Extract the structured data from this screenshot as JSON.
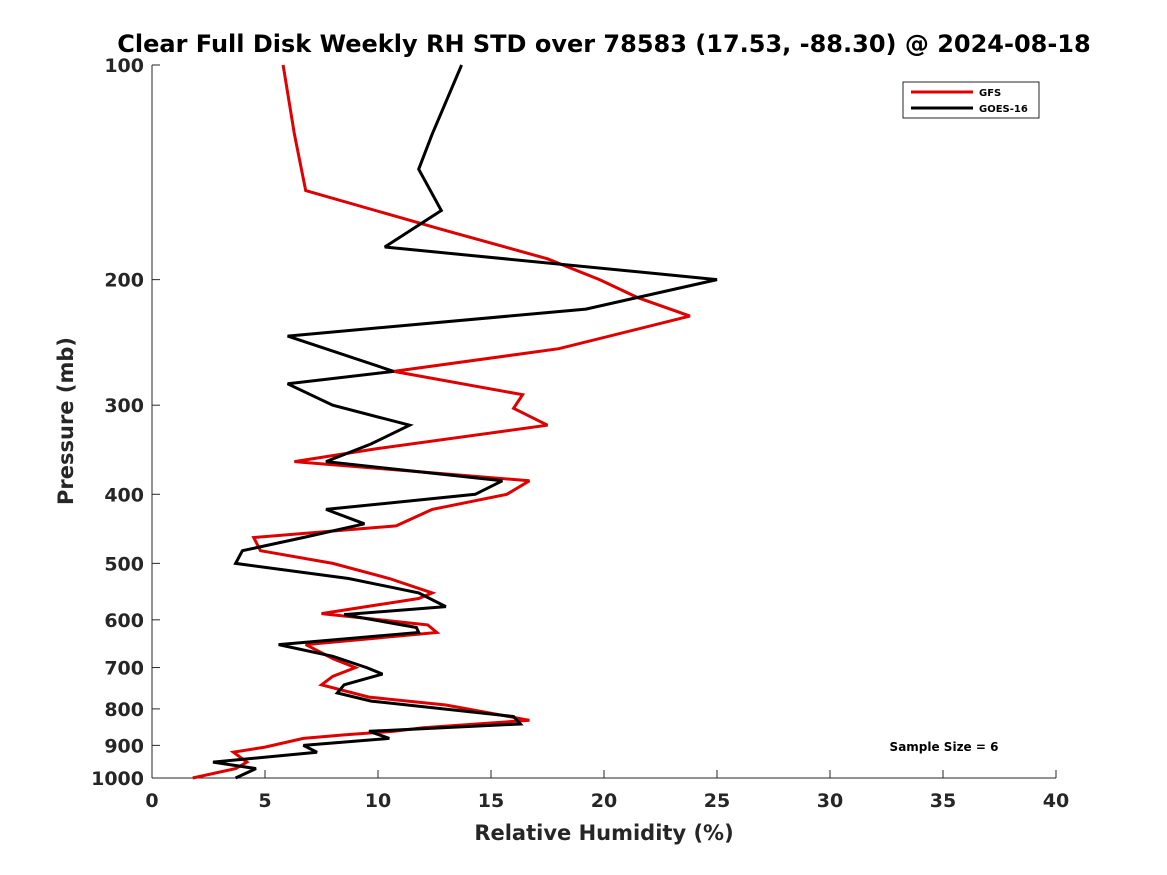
{
  "chart_data": {
    "type": "line",
    "title": "Clear Full Disk Weekly RH STD over 78583 (17.53, -88.30) @ 2024-08-18",
    "xlabel": "Relative Humidity (%)",
    "ylabel": "Pressure (mb)",
    "xlim": [
      0,
      40
    ],
    "ylim": [
      100,
      1000
    ],
    "y_scale": "log",
    "y_reversed": true,
    "x_ticks": [
      0,
      5,
      10,
      15,
      20,
      25,
      30,
      35,
      40
    ],
    "y_ticks": [
      100,
      200,
      300,
      400,
      500,
      600,
      700,
      800,
      900,
      1000
    ],
    "grid": false,
    "legend_position": "top-right",
    "annotation": "Sample Size = 6",
    "series": [
      {
        "name": "GFS",
        "color": "#e00000",
        "points": [
          [
            5.8,
            100
          ],
          [
            6.3,
            125
          ],
          [
            6.8,
            150
          ],
          [
            12.8,
            170
          ],
          [
            17.5,
            187
          ],
          [
            19.8,
            200
          ],
          [
            21.5,
            212
          ],
          [
            23.8,
            225
          ],
          [
            18,
            250
          ],
          [
            10.7,
            269
          ],
          [
            16.4,
            290
          ],
          [
            16,
            303
          ],
          [
            17.5,
            320
          ],
          [
            10,
            345
          ],
          [
            6.3,
            360
          ],
          [
            16.7,
            383
          ],
          [
            15.7,
            400
          ],
          [
            12.4,
            420
          ],
          [
            10.8,
            443
          ],
          [
            4.5,
            460
          ],
          [
            4.8,
            480
          ],
          [
            8,
            500
          ],
          [
            10.5,
            525
          ],
          [
            12.4,
            550
          ],
          [
            11.8,
            560
          ],
          [
            7.5,
            588
          ],
          [
            12.2,
            610
          ],
          [
            12.6,
            625
          ],
          [
            6.8,
            650
          ],
          [
            8,
            680
          ],
          [
            9,
            700
          ],
          [
            8,
            720
          ],
          [
            7.5,
            740
          ],
          [
            9.6,
            770
          ],
          [
            13,
            790
          ],
          [
            16.7,
            830
          ],
          [
            12,
            850
          ],
          [
            10.7,
            860
          ],
          [
            8.5,
            870
          ],
          [
            6.7,
            880
          ],
          [
            5,
            905
          ],
          [
            3.6,
            920
          ],
          [
            4.2,
            950
          ],
          [
            3.7,
            970
          ],
          [
            1.8,
            1000
          ]
        ]
      },
      {
        "name": "GOES-16",
        "color": "#000000",
        "points": [
          [
            13.7,
            100
          ],
          [
            12.4,
            125
          ],
          [
            11.8,
            140
          ],
          [
            12.8,
            160
          ],
          [
            10.3,
            180
          ],
          [
            25,
            200
          ],
          [
            19.2,
            220
          ],
          [
            6,
            240
          ],
          [
            10.7,
            269
          ],
          [
            6,
            280
          ],
          [
            8,
            300
          ],
          [
            11.4,
            320
          ],
          [
            9.7,
            340
          ],
          [
            7.7,
            360
          ],
          [
            15.5,
            383
          ],
          [
            14.3,
            400
          ],
          [
            7.7,
            420
          ],
          [
            9.4,
            440
          ],
          [
            6.7,
            460
          ],
          [
            4,
            480
          ],
          [
            3.7,
            500
          ],
          [
            8.7,
            525
          ],
          [
            11.8,
            550
          ],
          [
            13,
            575
          ],
          [
            8.5,
            590
          ],
          [
            11.7,
            615
          ],
          [
            11.8,
            625
          ],
          [
            5.6,
            650
          ],
          [
            8,
            675
          ],
          [
            9.5,
            700
          ],
          [
            10.2,
            715
          ],
          [
            8.5,
            740
          ],
          [
            8.2,
            760
          ],
          [
            9.7,
            780
          ],
          [
            16,
            820
          ],
          [
            16.3,
            840
          ],
          [
            9.6,
            860
          ],
          [
            10.5,
            880
          ],
          [
            6.7,
            900
          ],
          [
            7.3,
            920
          ],
          [
            2.7,
            950
          ],
          [
            4.6,
            970
          ],
          [
            3.7,
            1000
          ]
        ]
      }
    ]
  }
}
